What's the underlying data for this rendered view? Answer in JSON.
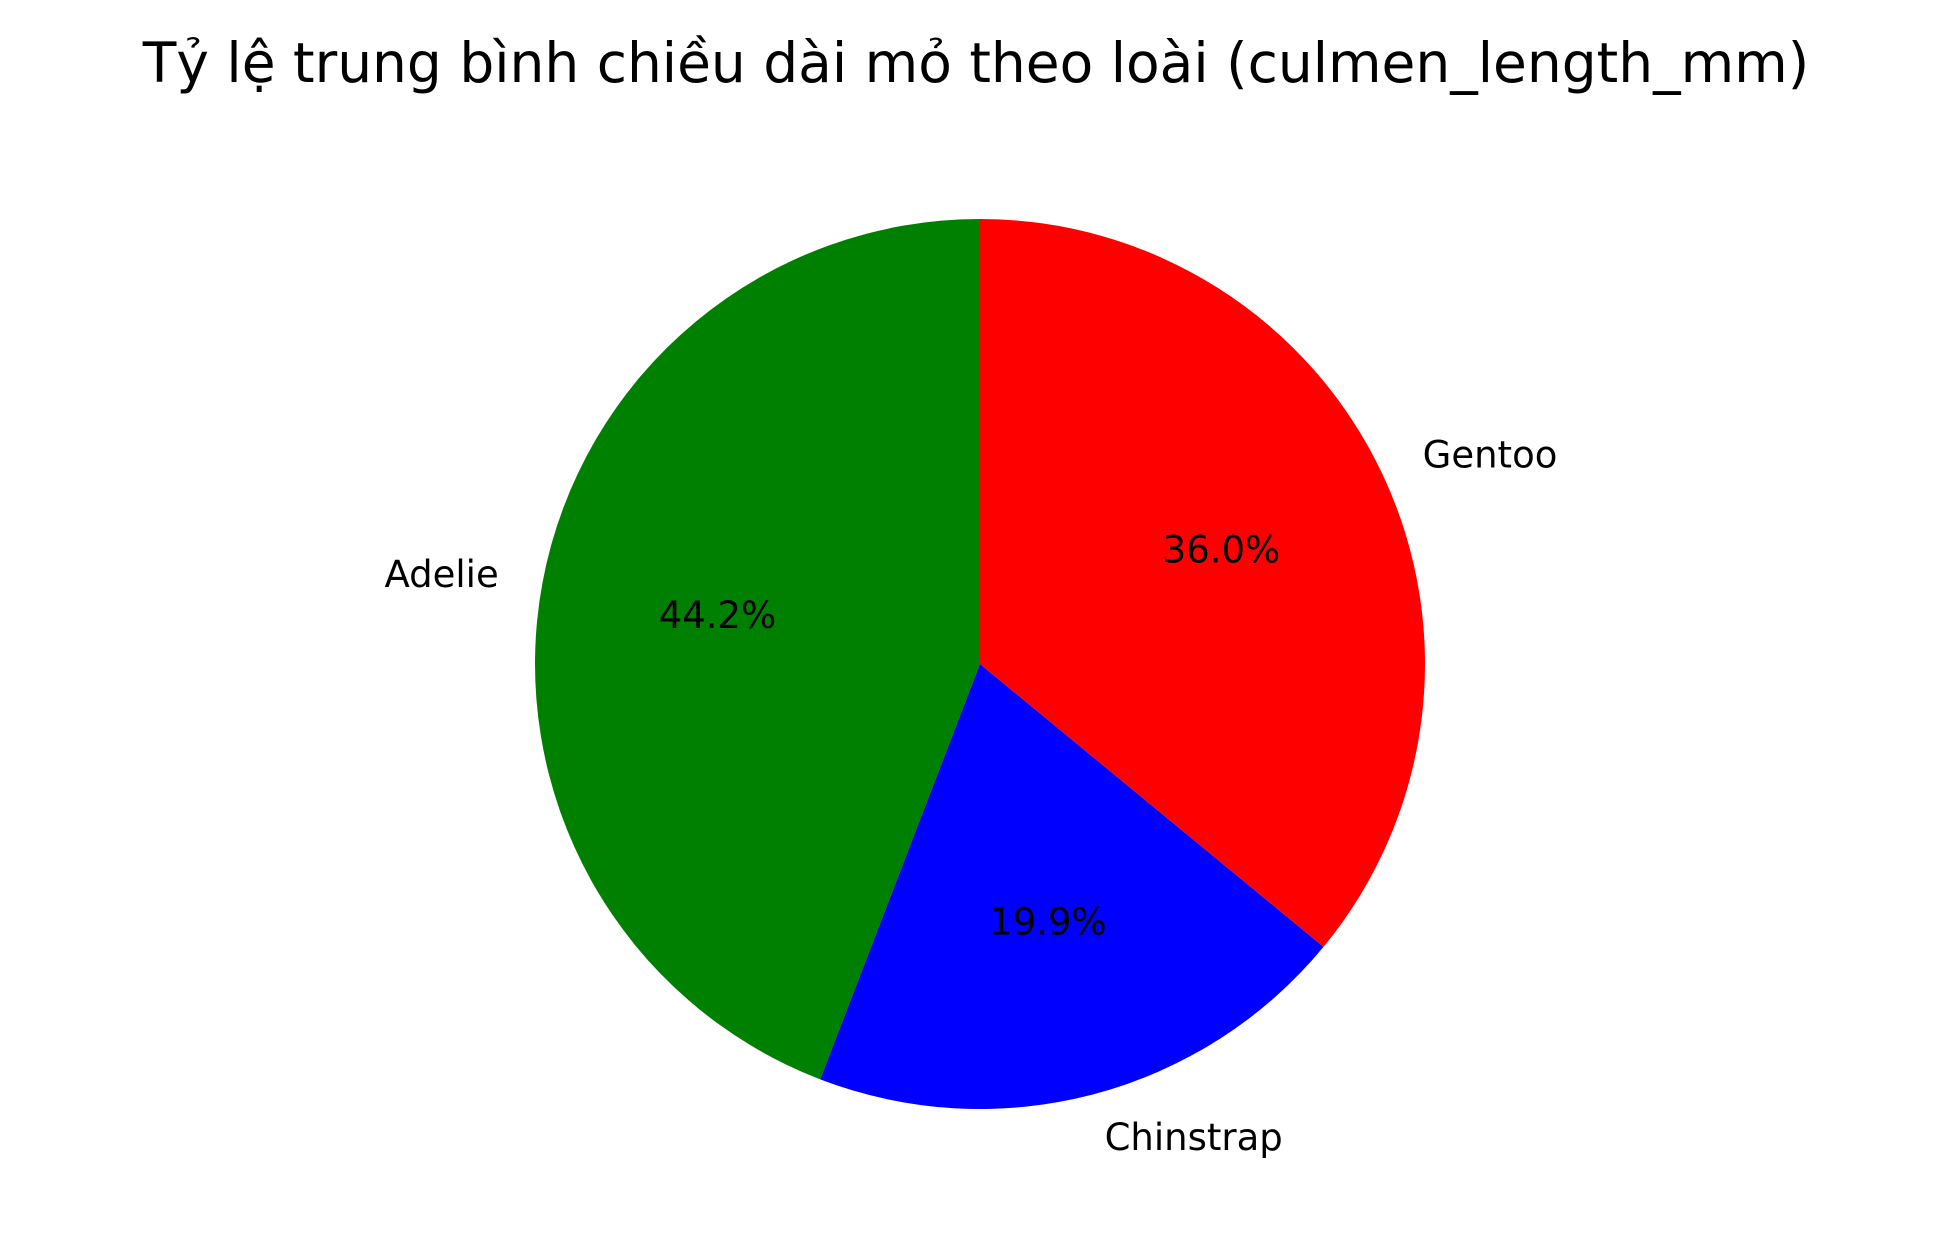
{
  "chart_data": {
    "type": "pie",
    "title": "Tỷ lệ trung bình chiều dài mỏ theo loài (culmen_length_mm)",
    "categories": [
      "Adelie",
      "Chinstrap",
      "Gentoo"
    ],
    "values": [
      44.2,
      19.9,
      36.0
    ],
    "value_labels": [
      "44.2%",
      "19.9%",
      "36.0%"
    ],
    "colors": [
      "#008000",
      "#0000ff",
      "#ff0000"
    ],
    "start_angle_deg": 90,
    "direction": "counterclockwise",
    "legend": "none"
  }
}
